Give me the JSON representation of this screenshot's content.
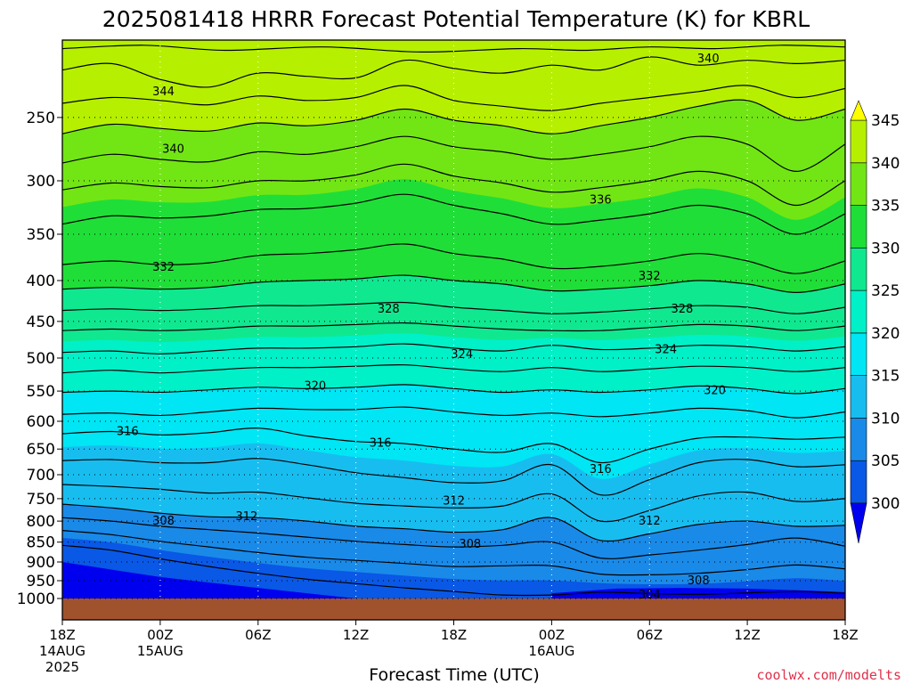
{
  "chart_data": {
    "type": "contour",
    "title": "2025081418 HRRR Forecast Potential Temperature (K) for KBRL",
    "xlabel": "Forecast Time (UTC)",
    "ylabel": "",
    "credit": "coolwx.com/modelts",
    "x_ticks": [
      {
        "hours": 0,
        "line1": "18Z",
        "line2": "14AUG",
        "line3": "2025"
      },
      {
        "hours": 6,
        "line1": "00Z",
        "line2": "15AUG",
        "line3": ""
      },
      {
        "hours": 12,
        "line1": "06Z",
        "line2": "",
        "line3": ""
      },
      {
        "hours": 18,
        "line1": "12Z",
        "line2": "",
        "line3": ""
      },
      {
        "hours": 24,
        "line1": "18Z",
        "line2": "",
        "line3": ""
      },
      {
        "hours": 30,
        "line1": "00Z",
        "line2": "16AUG",
        "line3": ""
      },
      {
        "hours": 36,
        "line1": "06Z",
        "line2": "",
        "line3": ""
      },
      {
        "hours": 42,
        "line1": "12Z",
        "line2": "",
        "line3": ""
      },
      {
        "hours": 48,
        "line1": "18Z",
        "line2": "",
        "line3": ""
      }
    ],
    "xlim": [
      0,
      48
    ],
    "y_ticks": [
      250,
      300,
      350,
      400,
      450,
      500,
      550,
      600,
      650,
      700,
      750,
      800,
      850,
      900,
      950,
      1000
    ],
    "ylim_hPa": [
      200,
      1000
    ],
    "y_scale": "log-pressure",
    "grid": true,
    "colorbar": {
      "levels": [
        300,
        305,
        310,
        315,
        320,
        325,
        330,
        335,
        340,
        345
      ],
      "labels": [
        "300",
        "305",
        "310",
        "315",
        "320",
        "325",
        "330",
        "335",
        "340",
        "345"
      ],
      "colors": [
        "#0000ee",
        "#0a58e6",
        "#1a8ae8",
        "#18bdf0",
        "#00e6f4",
        "#00f0c8",
        "#10e890",
        "#20de38",
        "#72e614",
        "#b6f000",
        "#ffff00"
      ]
    },
    "contour_labels": [
      {
        "text": "344",
        "hours": 6.2,
        "hPa": 232
      },
      {
        "text": "340",
        "hours": 39.6,
        "hPa": 211
      },
      {
        "text": "340",
        "hours": 6.8,
        "hPa": 274
      },
      {
        "text": "336",
        "hours": 33.0,
        "hPa": 317
      },
      {
        "text": "332",
        "hours": 6.2,
        "hPa": 385
      },
      {
        "text": "332",
        "hours": 36.0,
        "hPa": 395
      },
      {
        "text": "328",
        "hours": 20.0,
        "hPa": 434
      },
      {
        "text": "328",
        "hours": 38.0,
        "hPa": 434
      },
      {
        "text": "324",
        "hours": 24.5,
        "hPa": 495
      },
      {
        "text": "324",
        "hours": 37.0,
        "hPa": 488
      },
      {
        "text": "320",
        "hours": 15.5,
        "hPa": 542
      },
      {
        "text": "320",
        "hours": 40.0,
        "hPa": 549
      },
      {
        "text": "316",
        "hours": 4.0,
        "hPa": 618
      },
      {
        "text": "316",
        "hours": 19.5,
        "hPa": 639
      },
      {
        "text": "316",
        "hours": 33.0,
        "hPa": 689
      },
      {
        "text": "312",
        "hours": 24.0,
        "hPa": 755
      },
      {
        "text": "312",
        "hours": 11.3,
        "hPa": 790
      },
      {
        "text": "312",
        "hours": 36.0,
        "hPa": 800
      },
      {
        "text": "308",
        "hours": 6.2,
        "hPa": 800
      },
      {
        "text": "308",
        "hours": 25.0,
        "hPa": 855
      },
      {
        "text": "308",
        "hours": 39.0,
        "hPa": 950
      },
      {
        "text": "304",
        "hours": 36.0,
        "hPa": 990
      }
    ],
    "isotherms": [
      {
        "value": 345,
        "x": [
          0,
          5,
          10,
          16,
          22,
          28,
          32,
          36,
          40,
          44,
          48
        ],
        "hPa": [
          205,
          203,
          206,
          204,
          207,
          205,
          206,
          204,
          205,
          203,
          204
        ]
      },
      {
        "value": 344,
        "x": [
          0,
          3,
          6,
          9,
          12,
          15,
          18,
          21,
          24,
          27,
          30,
          33,
          36,
          39,
          42,
          45,
          48
        ],
        "hPa": [
          218,
          214,
          224,
          229,
          220,
          222,
          223,
          212,
          217,
          220,
          215,
          218,
          210,
          215,
          212,
          214,
          212
        ]
      },
      {
        "value": 342,
        "x": [
          0,
          3,
          6,
          9,
          12,
          15,
          18,
          21,
          24,
          27,
          30,
          33,
          36,
          39,
          42,
          45,
          48
        ],
        "hPa": [
          240,
          236,
          238,
          241,
          235,
          238,
          236,
          228,
          238,
          242,
          245,
          240,
          236,
          232,
          228,
          236,
          230
        ]
      },
      {
        "value": 340,
        "x": [
          0,
          3,
          6,
          9,
          12,
          15,
          18,
          21,
          24,
          27,
          30,
          33,
          36,
          39,
          42,
          45,
          48
        ],
        "hPa": [
          262,
          255,
          258,
          260,
          254,
          256,
          252,
          244,
          252,
          256,
          262,
          256,
          250,
          242,
          238,
          252,
          244
        ]
      },
      {
        "value": 338,
        "x": [
          0,
          3,
          6,
          9,
          12,
          15,
          18,
          21,
          24,
          27,
          30,
          33,
          36,
          39,
          42,
          45,
          48
        ],
        "hPa": [
          285,
          278,
          282,
          284,
          276,
          278,
          272,
          264,
          272,
          276,
          282,
          278,
          272,
          264,
          270,
          292,
          270
        ]
      },
      {
        "value": 336,
        "x": [
          0,
          3,
          6,
          9,
          12,
          15,
          18,
          21,
          24,
          27,
          30,
          33,
          36,
          39,
          42,
          45,
          48
        ],
        "hPa": [
          308,
          302,
          305,
          306,
          300,
          300,
          295,
          286,
          296,
          302,
          310,
          306,
          300,
          292,
          300,
          322,
          300
        ]
      },
      {
        "value": 334,
        "x": [
          0,
          3,
          6,
          9,
          12,
          15,
          18,
          21,
          24,
          27,
          30,
          33,
          36,
          39,
          42,
          45,
          48
        ],
        "hPa": [
          340,
          332,
          334,
          332,
          326,
          325,
          320,
          312,
          322,
          330,
          340,
          336,
          330,
          322,
          330,
          350,
          330
        ]
      },
      {
        "value": 332,
        "x": [
          0,
          3,
          6,
          9,
          12,
          15,
          18,
          21,
          24,
          27,
          30,
          33,
          36,
          39,
          42,
          45,
          48
        ],
        "hPa": [
          382,
          378,
          382,
          380,
          372,
          370,
          366,
          360,
          370,
          376,
          386,
          384,
          378,
          370,
          378,
          392,
          378
        ]
      },
      {
        "value": 330,
        "x": [
          0,
          3,
          6,
          9,
          12,
          15,
          18,
          21,
          24,
          27,
          30,
          33,
          36,
          39,
          42,
          45,
          48
        ],
        "hPa": [
          410,
          408,
          410,
          408,
          402,
          400,
          398,
          394,
          400,
          404,
          412,
          410,
          406,
          400,
          404,
          414,
          404
        ]
      },
      {
        "value": 328,
        "x": [
          0,
          3,
          6,
          9,
          12,
          15,
          18,
          21,
          24,
          27,
          30,
          33,
          36,
          39,
          42,
          45,
          48
        ],
        "hPa": [
          436,
          434,
          436,
          434,
          430,
          430,
          428,
          426,
          432,
          436,
          440,
          438,
          434,
          430,
          432,
          440,
          432
        ]
      },
      {
        "value": 326,
        "x": [
          0,
          3,
          6,
          9,
          12,
          15,
          18,
          21,
          24,
          27,
          30,
          33,
          36,
          39,
          42,
          45,
          48
        ],
        "hPa": [
          462,
          460,
          462,
          460,
          456,
          456,
          454,
          452,
          456,
          460,
          462,
          462,
          458,
          454,
          456,
          462,
          456
        ]
      },
      {
        "value": 324,
        "x": [
          0,
          3,
          6,
          9,
          12,
          15,
          18,
          21,
          24,
          27,
          30,
          33,
          36,
          39,
          42,
          45,
          48
        ],
        "hPa": [
          492,
          490,
          494,
          490,
          486,
          486,
          484,
          480,
          486,
          490,
          482,
          488,
          486,
          482,
          484,
          490,
          484
        ]
      },
      {
        "value": 322,
        "x": [
          0,
          3,
          6,
          9,
          12,
          15,
          18,
          21,
          24,
          27,
          30,
          33,
          36,
          39,
          42,
          45,
          48
        ],
        "hPa": [
          522,
          518,
          522,
          518,
          514,
          514,
          512,
          510,
          516,
          520,
          514,
          520,
          516,
          512,
          514,
          520,
          514
        ]
      },
      {
        "value": 320,
        "x": [
          0,
          3,
          6,
          9,
          12,
          15,
          18,
          21,
          24,
          27,
          30,
          33,
          36,
          39,
          42,
          45,
          48
        ],
        "hPa": [
          552,
          550,
          552,
          548,
          544,
          546,
          544,
          540,
          546,
          552,
          548,
          552,
          548,
          542,
          546,
          554,
          546
        ]
      },
      {
        "value": 318,
        "x": [
          0,
          3,
          6,
          9,
          12,
          15,
          18,
          21,
          24,
          27,
          30,
          33,
          36,
          39,
          42,
          45,
          48
        ],
        "hPa": [
          588,
          586,
          590,
          584,
          578,
          580,
          580,
          576,
          584,
          590,
          586,
          592,
          586,
          578,
          582,
          594,
          584
        ]
      },
      {
        "value": 316,
        "x": [
          0,
          3,
          6,
          9,
          12,
          15,
          18,
          21,
          24,
          27,
          30,
          33,
          36,
          39,
          42,
          45,
          48
        ],
        "hPa": [
          622,
          618,
          624,
          620,
          612,
          626,
          636,
          640,
          650,
          656,
          640,
          676,
          650,
          630,
          628,
          632,
          628
        ]
      },
      {
        "value": 314,
        "x": [
          0,
          3,
          6,
          9,
          12,
          15,
          18,
          21,
          24,
          27,
          30,
          33,
          36,
          39,
          42,
          45,
          48
        ],
        "hPa": [
          672,
          670,
          676,
          676,
          668,
          680,
          696,
          706,
          716,
          712,
          680,
          742,
          710,
          676,
          670,
          684,
          680
        ]
      },
      {
        "value": 312,
        "x": [
          0,
          3,
          6,
          9,
          12,
          15,
          18,
          21,
          24,
          27,
          30,
          33,
          36,
          39,
          42,
          45,
          48
        ],
        "hPa": [
          720,
          724,
          730,
          738,
          736,
          748,
          760,
          766,
          770,
          766,
          740,
          800,
          776,
          744,
          736,
          756,
          750
        ]
      },
      {
        "value": 310,
        "x": [
          0,
          3,
          6,
          9,
          12,
          15,
          18,
          21,
          24,
          27,
          30,
          33,
          36,
          39,
          42,
          45,
          48
        ],
        "hPa": [
          762,
          770,
          782,
          790,
          792,
          800,
          812,
          818,
          826,
          820,
          792,
          846,
          830,
          808,
          800,
          812,
          810
        ]
      },
      {
        "value": 308,
        "x": [
          0,
          3,
          6,
          9,
          12,
          15,
          18,
          21,
          24,
          27,
          30,
          33,
          36,
          39,
          42,
          45,
          48
        ],
        "hPa": [
          792,
          800,
          812,
          820,
          828,
          838,
          848,
          856,
          862,
          858,
          850,
          890,
          882,
          870,
          856,
          840,
          860
        ]
      },
      {
        "value": 306,
        "x": [
          0,
          3,
          6,
          9,
          12,
          15,
          18,
          21,
          24,
          27,
          30,
          33,
          36,
          39,
          42,
          45,
          48
        ],
        "hPa": [
          822,
          832,
          848,
          862,
          876,
          888,
          896,
          904,
          912,
          910,
          910,
          932,
          934,
          930,
          920,
          908,
          918
        ]
      },
      {
        "value": 304,
        "x": [
          0,
          3,
          6,
          9,
          12,
          15,
          18,
          21,
          24,
          27,
          30,
          33,
          36,
          39,
          42,
          45,
          48
        ],
        "hPa": [
          858,
          870,
          892,
          912,
          930,
          946,
          958,
          970,
          980,
          990,
          990,
          982,
          986,
          988,
          984,
          980,
          985
        ]
      }
    ]
  }
}
